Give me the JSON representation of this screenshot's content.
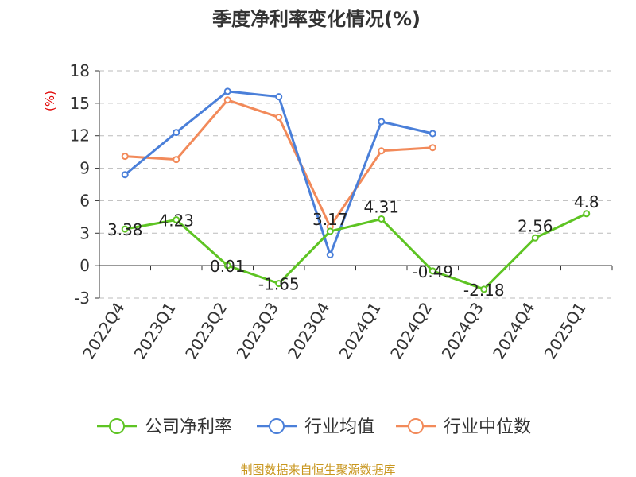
{
  "chart_data": {
    "type": "line",
    "title": "季度净利率变化情况(%)",
    "ylabel": "(%)",
    "categories": [
      "2022Q4",
      "2023Q1",
      "2023Q2",
      "2023Q3",
      "2023Q4",
      "2024Q1",
      "2024Q2",
      "2024Q3",
      "2024Q4",
      "2025Q1"
    ],
    "ylim": [
      -3,
      18
    ],
    "yticks": [
      -3,
      0,
      3,
      6,
      9,
      12,
      15,
      18
    ],
    "grid": true,
    "legend_position": "bottom",
    "series": [
      {
        "name": "公司净利率",
        "color": "#5ec423",
        "values": [
          3.38,
          4.23,
          0.01,
          -1.65,
          3.17,
          4.31,
          -0.49,
          -2.18,
          2.56,
          4.8
        ],
        "labels": [
          "3.38",
          "4.23",
          "0.01",
          "-1.65",
          "3.17",
          "4.31",
          "-0.49",
          "-2.18",
          "2.56",
          "4.8"
        ]
      },
      {
        "name": "行业均值",
        "color": "#4a7fd9",
        "values": [
          8.4,
          12.3,
          16.1,
          15.6,
          1.0,
          13.3,
          12.2,
          null,
          null,
          null
        ]
      },
      {
        "name": "行业中位数",
        "color": "#f28a5a",
        "values": [
          10.1,
          9.8,
          15.3,
          13.7,
          3.6,
          10.6,
          10.9,
          null,
          null,
          null
        ]
      }
    ]
  },
  "source": "制图数据来自恒生聚源数据库"
}
